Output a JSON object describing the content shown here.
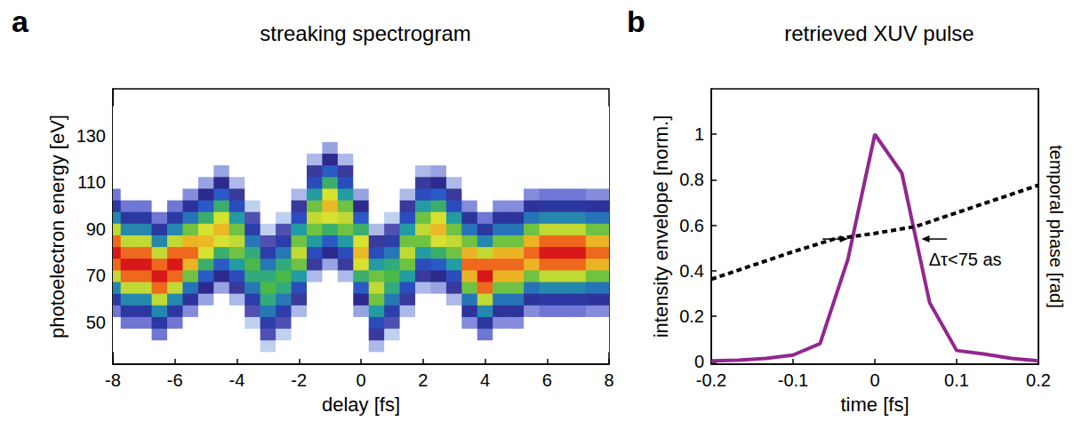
{
  "chart_data": [
    {
      "type": "heatmap",
      "panel_label": "a",
      "title": "streaking spectrogram",
      "x_label": "delay [fs]",
      "y_label": "photoelectron energy [eV]",
      "x": [
        -8,
        -7.5,
        -7,
        -6.5,
        -6,
        -5.5,
        -5,
        -4.5,
        -4,
        -3.5,
        -3,
        -2.5,
        -2,
        -1.5,
        -1,
        -0.5,
        0,
        0.5,
        1,
        1.5,
        2,
        2.5,
        3,
        3.5,
        4,
        4.5,
        5,
        5.5,
        6,
        6.5,
        7,
        7.5,
        8
      ],
      "y": [
        40,
        45,
        50,
        55,
        60,
        65,
        70,
        75,
        80,
        85,
        90,
        95,
        100,
        105,
        110,
        115,
        120,
        125,
        130,
        135,
        140
      ],
      "values": [
        [
          0,
          0,
          0,
          10,
          25,
          45,
          70,
          90,
          100,
          90,
          70,
          45,
          25,
          10,
          0,
          0,
          0,
          0,
          0,
          0,
          0
        ],
        [
          0,
          0,
          10,
          25,
          45,
          70,
          90,
          100,
          90,
          70,
          45,
          25,
          10,
          0,
          0,
          0,
          0,
          0,
          0,
          0,
          0
        ],
        [
          0,
          0,
          10,
          25,
          45,
          70,
          90,
          100,
          90,
          70,
          45,
          25,
          10,
          0,
          0,
          0,
          0,
          0,
          0,
          0,
          0
        ],
        [
          0,
          10,
          25,
          45,
          70,
          90,
          100,
          90,
          70,
          45,
          25,
          10,
          0,
          0,
          0,
          0,
          0,
          0,
          0,
          0,
          0
        ],
        [
          0,
          0,
          10,
          25,
          45,
          70,
          90,
          100,
          90,
          70,
          45,
          25,
          10,
          0,
          0,
          0,
          0,
          0,
          0,
          0,
          0
        ],
        [
          0,
          0,
          0,
          9,
          23,
          41,
          63,
          81,
          90,
          81,
          63,
          41,
          23,
          9,
          0,
          0,
          0,
          0,
          0,
          0,
          0
        ],
        [
          0,
          0,
          0,
          0,
          8,
          20,
          36,
          56,
          72,
          80,
          72,
          56,
          36,
          20,
          8,
          0,
          0,
          0,
          0,
          0,
          0
        ],
        [
          0,
          0,
          0,
          0,
          0,
          8,
          20,
          36,
          56,
          72,
          80,
          72,
          56,
          36,
          20,
          8,
          0,
          0,
          0,
          0,
          0
        ],
        [
          0,
          0,
          0,
          0,
          7,
          18,
          32,
          49,
          63,
          70,
          63,
          49,
          32,
          18,
          7,
          0,
          0,
          0,
          0,
          0,
          0
        ],
        [
          0,
          0,
          6,
          15,
          27,
          42,
          54,
          60,
          54,
          42,
          27,
          15,
          6,
          0,
          0,
          0,
          0,
          0,
          0,
          0,
          0
        ],
        [
          6,
          15,
          27,
          42,
          54,
          60,
          54,
          42,
          27,
          15,
          6,
          0,
          0,
          0,
          0,
          0,
          0,
          0,
          0,
          0,
          0
        ],
        [
          0,
          6,
          15,
          27,
          42,
          54,
          60,
          54,
          42,
          27,
          15,
          6,
          0,
          0,
          0,
          0,
          0,
          0,
          0,
          0,
          0
        ],
        [
          0,
          0,
          0,
          7,
          18,
          32,
          49,
          63,
          70,
          63,
          49,
          32,
          18,
          7,
          0,
          0,
          0,
          0,
          0,
          0,
          0
        ],
        [
          0,
          0,
          0,
          0,
          0,
          0,
          7,
          18,
          32,
          49,
          63,
          70,
          63,
          49,
          32,
          18,
          7,
          0,
          0,
          0,
          0
        ],
        [
          0,
          0,
          0,
          0,
          0,
          0,
          0,
          8,
          20,
          36,
          56,
          72,
          80,
          72,
          56,
          36,
          20,
          8,
          0,
          0,
          0
        ],
        [
          0,
          0,
          0,
          0,
          0,
          0,
          7,
          18,
          32,
          49,
          63,
          70,
          63,
          49,
          32,
          18,
          7,
          0,
          0,
          0,
          0
        ],
        [
          0,
          0,
          0,
          8,
          20,
          36,
          56,
          72,
          80,
          72,
          56,
          36,
          20,
          8,
          0,
          0,
          0,
          0,
          0,
          0,
          0
        ],
        [
          7,
          18,
          32,
          49,
          63,
          70,
          63,
          49,
          32,
          18,
          7,
          0,
          0,
          0,
          0,
          0,
          0,
          0,
          0,
          0,
          0
        ],
        [
          0,
          6,
          15,
          27,
          42,
          54,
          60,
          54,
          42,
          27,
          15,
          6,
          0,
          0,
          0,
          0,
          0,
          0,
          0,
          0,
          0
        ],
        [
          0,
          0,
          0,
          7,
          18,
          32,
          49,
          63,
          70,
          63,
          49,
          32,
          18,
          7,
          0,
          0,
          0,
          0,
          0,
          0,
          0
        ],
        [
          0,
          0,
          0,
          0,
          0,
          7,
          18,
          32,
          49,
          63,
          70,
          63,
          49,
          32,
          18,
          7,
          0,
          0,
          0,
          0,
          0
        ],
        [
          0,
          0,
          0,
          0,
          0,
          8,
          20,
          36,
          56,
          72,
          80,
          72,
          56,
          36,
          20,
          8,
          0,
          0,
          0,
          0,
          0
        ],
        [
          0,
          0,
          0,
          0,
          7,
          18,
          32,
          49,
          63,
          70,
          63,
          49,
          32,
          18,
          7,
          0,
          0,
          0,
          0,
          0,
          0
        ],
        [
          0,
          0,
          9,
          23,
          41,
          63,
          81,
          90,
          81,
          63,
          41,
          23,
          9,
          0,
          0,
          0,
          0,
          0,
          0,
          0,
          0
        ],
        [
          0,
          10,
          25,
          45,
          70,
          90,
          100,
          90,
          70,
          45,
          25,
          10,
          0,
          0,
          0,
          0,
          0,
          0,
          0,
          0,
          0
        ],
        [
          0,
          0,
          9,
          23,
          41,
          63,
          81,
          90,
          81,
          63,
          41,
          23,
          9,
          0,
          0,
          0,
          0,
          0,
          0,
          0,
          0
        ],
        [
          0,
          0,
          9,
          23,
          41,
          63,
          81,
          90,
          81,
          63,
          41,
          23,
          9,
          0,
          0,
          0,
          0,
          0,
          0,
          0,
          0
        ],
        [
          0,
          0,
          0,
          9,
          23,
          41,
          63,
          81,
          90,
          81,
          63,
          41,
          23,
          9,
          0,
          0,
          0,
          0,
          0,
          0,
          0
        ],
        [
          0,
          0,
          0,
          10,
          25,
          45,
          70,
          90,
          100,
          90,
          70,
          45,
          25,
          10,
          0,
          0,
          0,
          0,
          0,
          0,
          0
        ],
        [
          0,
          0,
          0,
          10,
          25,
          45,
          70,
          90,
          100,
          90,
          70,
          45,
          25,
          10,
          0,
          0,
          0,
          0,
          0,
          0,
          0
        ],
        [
          0,
          0,
          0,
          10,
          25,
          45,
          70,
          90,
          100,
          90,
          70,
          45,
          25,
          10,
          0,
          0,
          0,
          0,
          0,
          0,
          0
        ],
        [
          0,
          0,
          0,
          9,
          23,
          41,
          63,
          81,
          90,
          81,
          63,
          41,
          23,
          9,
          0,
          0,
          0,
          0,
          0,
          0,
          0
        ],
        [
          0,
          0,
          0,
          9,
          23,
          41,
          63,
          81,
          90,
          81,
          63,
          41,
          23,
          9,
          0,
          0,
          0,
          0,
          0,
          0,
          0
        ]
      ],
      "color_range": [
        0,
        100
      ],
      "xlim": [
        -8,
        8
      ],
      "xticks": [
        -8,
        -6,
        -4,
        -2,
        0,
        2,
        4,
        6,
        8
      ],
      "ylim": [
        32,
        150
      ],
      "yticks": [
        50,
        70,
        90,
        110,
        130
      ],
      "grid": false
    },
    {
      "type": "line",
      "panel_label": "b",
      "title": "retrieved XUV pulse",
      "x_label": "time [fs]",
      "y_label": "intensity envelope [norm.]",
      "y2_label": "temporal phase [rad]",
      "series": [
        {
          "color": "#92278f",
          "line_style": "solid",
          "x": [
            -0.2,
            -0.167,
            -0.133,
            -0.1,
            -0.067,
            -0.033,
            0,
            0.033,
            0.067,
            0.1,
            0.133,
            0.167,
            0.2
          ],
          "values": [
            0.005,
            0.008,
            0.015,
            0.03,
            0.08,
            0.45,
            1,
            0.83,
            0.26,
            0.05,
            0.035,
            0.015,
            0.005
          ]
        },
        {
          "color": "#000000",
          "line_style": "dashed",
          "axis": "y2",
          "x": [
            -0.2,
            -0.15,
            -0.1,
            -0.05,
            0,
            0.05,
            0.1,
            0.15,
            0.2
          ],
          "values": [
            0.37,
            0.43,
            0.49,
            0.545,
            0.57,
            0.6,
            0.66,
            0.72,
            0.78
          ]
        }
      ],
      "annotations": [
        {
          "text": "Δτ<75 as"
        }
      ],
      "xlim": [
        -0.2,
        0.2
      ],
      "xticks": [
        -0.2,
        -0.1,
        0,
        0.1,
        0.2
      ],
      "ylim": [
        -0.01,
        1.2
      ],
      "yticks": [
        0,
        0.2,
        0.4,
        0.6,
        0.8,
        1
      ],
      "y2lim": [
        0,
        1.2
      ],
      "y2ticks": [],
      "grid": false
    }
  ]
}
